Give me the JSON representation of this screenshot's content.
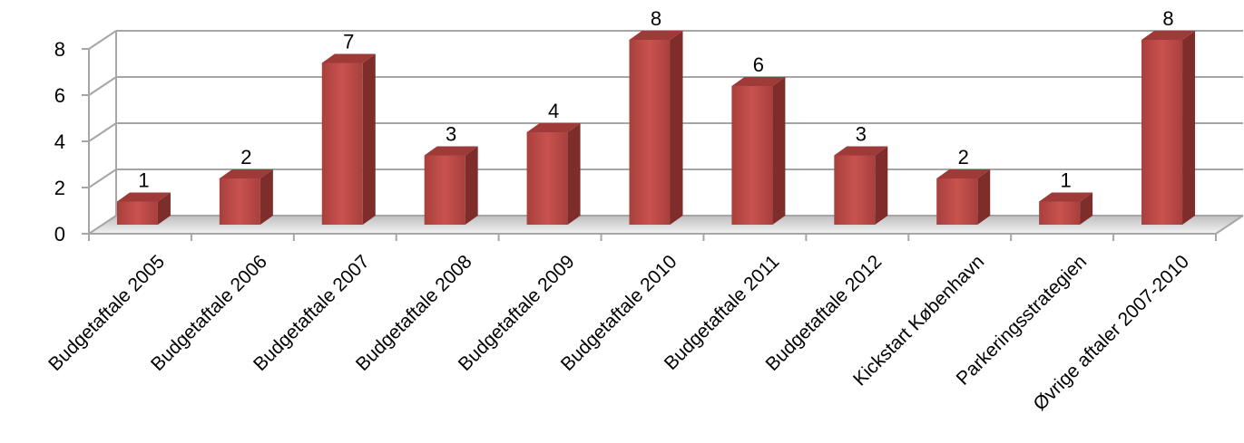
{
  "chart_data": {
    "type": "bar",
    "style": "3d-column",
    "categories": [
      "Budgetaftale 2005",
      "Budgetaftale 2006",
      "Budgetaftale 2007",
      "Budgetaftale 2008",
      "Budgetaftale 2009",
      "Budgetaftale 2010",
      "Budgetaftale 2011",
      "Budgetaftale 2012",
      "Kickstart København",
      "Parkeringsstrategien",
      "Øvrige aftaler 2007-2010"
    ],
    "values": [
      1,
      2,
      7,
      3,
      4,
      8,
      6,
      3,
      2,
      1,
      8
    ],
    "yticks": [
      "0",
      "2",
      "4",
      "6",
      "8"
    ],
    "ylim": [
      0,
      8
    ],
    "title": "",
    "xlabel": "",
    "ylabel": "",
    "grid": true,
    "legend": "none",
    "colors": {
      "bar_front": "#C0504D",
      "bar_top": "#9E3A37",
      "bar_side": "#7F2D2A",
      "gridline": "#A6A6A6",
      "floor": "#D9D9D9"
    }
  }
}
